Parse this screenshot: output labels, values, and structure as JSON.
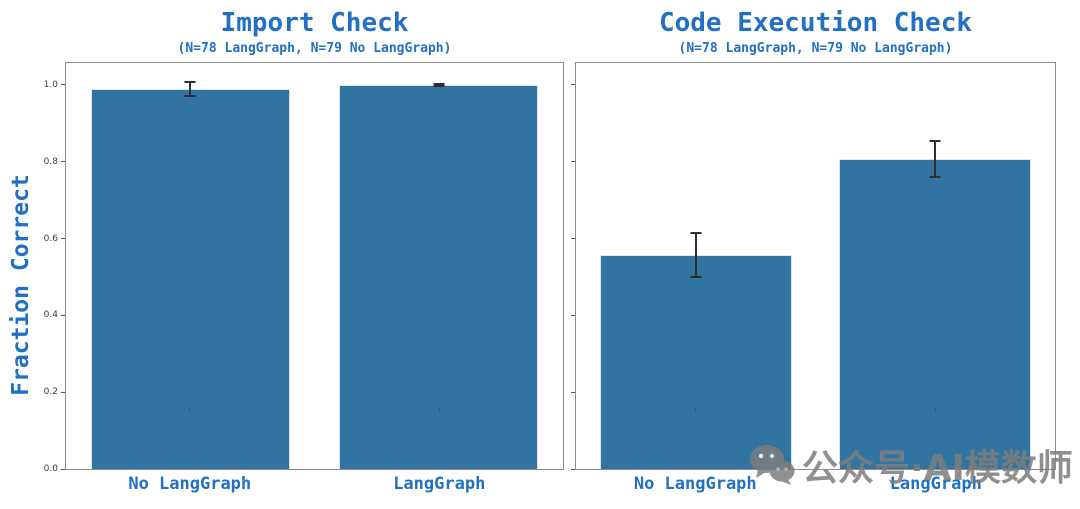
{
  "ylabel": "Fraction Correct",
  "colors": {
    "bar": "#3274a1",
    "title_blue": "#2170c4",
    "error_bar": "#2f2f2f",
    "spine": "#8c8c8c",
    "tick_text": "#3a3a3a",
    "watermark_gray": "#7d7d7d"
  },
  "watermark": {
    "icon": "wechat-icon",
    "text": "公众号·AI模数师"
  },
  "chart_data": [
    {
      "type": "bar",
      "title": "Import Check",
      "subtitle": "(N=78 LangGraph, N=79 No LangGraph)",
      "categories": [
        "No LangGraph",
        "LangGraph"
      ],
      "values": [
        0.99,
        1.0
      ],
      "errors": [
        0.018,
        0.002
      ],
      "bar_color": "#3274a1",
      "ylabel": "Fraction Correct",
      "ylim": [
        0,
        1.057
      ],
      "yticks": [
        0.0,
        0.2,
        0.4,
        0.6,
        0.8,
        1.0
      ],
      "show_ytick_labels": true,
      "grid": false,
      "legend": null
    },
    {
      "type": "bar",
      "title": "Code Execution Check",
      "subtitle": "(N=78 LangGraph, N=79 No LangGraph)",
      "categories": [
        "No LangGraph",
        "LangGraph"
      ],
      "values": [
        0.557,
        0.807
      ],
      "errors": [
        0.058,
        0.047
      ],
      "bar_color": "#3274a1",
      "ylabel": "",
      "ylim": [
        0,
        1.057
      ],
      "yticks": [
        0.0,
        0.2,
        0.4,
        0.6,
        0.8,
        1.0
      ],
      "show_ytick_labels": false,
      "grid": false,
      "legend": null
    }
  ]
}
